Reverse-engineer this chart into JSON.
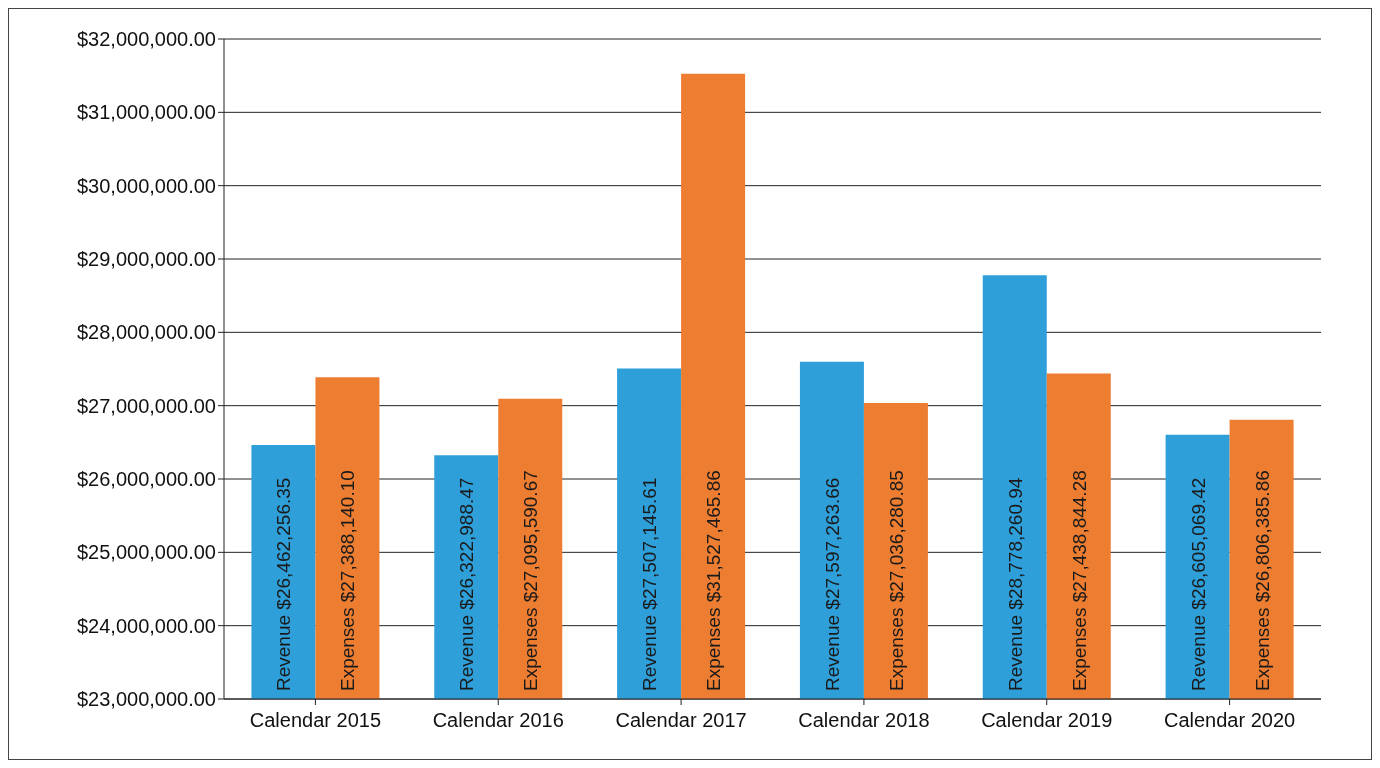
{
  "chart_data": {
    "type": "bar",
    "categories": [
      "Calendar 2015",
      "Calendar 2016",
      "Calendar 2017",
      "Calendar 2018",
      "Calendar 2019",
      "Calendar 2020"
    ],
    "series": [
      {
        "name": "Revenue",
        "color": "#2e9fd9",
        "values": [
          26462256.35,
          26322988.47,
          27507145.61,
          27597263.66,
          28778260.94,
          26605069.42
        ],
        "value_labels": [
          "$26,462,256.35",
          "$26,322,988.47",
          "$27,507,145.61",
          "$27,597,263.66",
          "$28,778,260.94",
          "$26,605,069.42"
        ]
      },
      {
        "name": "Expenses",
        "color": "#ed7d31",
        "values": [
          27388140.1,
          27095590.67,
          31527465.86,
          27036280.85,
          27438844.28,
          26806385.86
        ],
        "value_labels": [
          "$27,388,140.10",
          "$27,095,590.67",
          "$31,527,465.86",
          "$27,036,280.85",
          "$27,438,844.28",
          "$26,806,385.86"
        ]
      }
    ],
    "ylim": [
      23000000,
      32000000
    ],
    "yticks": [
      {
        "value": 23000000,
        "label": "$23,000,000.00"
      },
      {
        "value": 24000000,
        "label": "$24,000,000.00"
      },
      {
        "value": 25000000,
        "label": "$25,000,000.00"
      },
      {
        "value": 26000000,
        "label": "$26,000,000.00"
      },
      {
        "value": 27000000,
        "label": "$27,000,000.00"
      },
      {
        "value": 28000000,
        "label": "$28,000,000.00"
      },
      {
        "value": 29000000,
        "label": "$29,000,000.00"
      },
      {
        "value": 30000000,
        "label": "$30,000,000.00"
      },
      {
        "value": 31000000,
        "label": "$31,000,000.00"
      },
      {
        "value": 32000000,
        "label": "$32,000,000.00"
      }
    ],
    "grid": "y",
    "legend": false
  }
}
